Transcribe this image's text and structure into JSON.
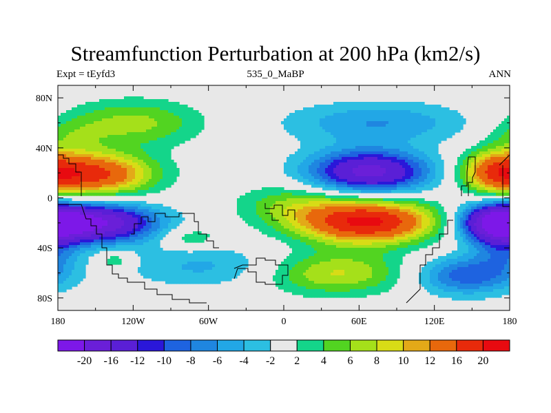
{
  "chart_data": {
    "type": "heatmap",
    "title": "Streamfunction Perturbation at 200 hPa (km2/s)",
    "left_string": "Expt = tEyfd3",
    "center_string": "535_0_MaBP",
    "right_string": "ANN",
    "xlim": [
      -180,
      180
    ],
    "ylim": [
      -90,
      90
    ],
    "x_ticks": [
      {
        "value": -180,
        "label": "180"
      },
      {
        "value": -120,
        "label": "120W"
      },
      {
        "value": -60,
        "label": "60W"
      },
      {
        "value": 0,
        "label": "0"
      },
      {
        "value": 60,
        "label": "60E"
      },
      {
        "value": 120,
        "label": "120E"
      },
      {
        "value": 180,
        "label": "180"
      }
    ],
    "y_ticks": [
      {
        "value": 80,
        "label": "80N"
      },
      {
        "value": 40,
        "label": "40N"
      },
      {
        "value": 0,
        "label": "0"
      },
      {
        "value": -40,
        "label": "40S"
      },
      {
        "value": -80,
        "label": "80S"
      }
    ],
    "levels": [
      -20,
      -16,
      -12,
      -10,
      -8,
      -6,
      -4,
      -2,
      2,
      4,
      6,
      8,
      10,
      12,
      16,
      20
    ],
    "level_labels": [
      "-20",
      "-16",
      "-12",
      "-10",
      "-8",
      "-6",
      "-4",
      "-2",
      "2",
      "4",
      "6",
      "8",
      "10",
      "12",
      "16",
      "20"
    ],
    "colors": [
      "#7d18e8",
      "#6a1fd8",
      "#5a1fd6",
      "#2a17d9",
      "#1e63e0",
      "#1f86e0",
      "#22a7e6",
      "#2cbfe2",
      "#e8e8e8",
      "#14d58a",
      "#52d421",
      "#a5e01a",
      "#d8dc16",
      "#e3a918",
      "#e8680c",
      "#e82a0b",
      "#e80a10"
    ],
    "anomalies": [
      {
        "lon": -150,
        "lat": 19,
        "value": 16.5,
        "rx": 32,
        "ry": 12
      },
      {
        "lon": -150,
        "lat": -20,
        "value": -20.0,
        "rx": 34,
        "ry": 11
      },
      {
        "lon": 68,
        "lat": 21,
        "value": -17.5,
        "rx": 34,
        "ry": 12
      },
      {
        "lon": 66,
        "lat": -19,
        "value": 21.0,
        "rx": 38,
        "ry": 12
      },
      {
        "lon": 170,
        "lat": 21,
        "value": 12.5,
        "rx": 20,
        "ry": 12
      },
      {
        "lon": 170,
        "lat": -20,
        "value": -18.5,
        "rx": 20,
        "ry": 11
      },
      {
        "lon": -120,
        "lat": 60,
        "value": 6.8,
        "rx": 38,
        "ry": 13
      },
      {
        "lon": 75,
        "lat": 60,
        "value": -6.0,
        "rx": 52,
        "ry": 12
      },
      {
        "lon": 40,
        "lat": -60,
        "value": 8.5,
        "rx": 40,
        "ry": 12
      },
      {
        "lon": 145,
        "lat": -62,
        "value": -9.5,
        "rx": 28,
        "ry": 11
      },
      {
        "lon": -60,
        "lat": -55,
        "value": -4.5,
        "rx": 48,
        "ry": 12
      },
      {
        "lon": -135,
        "lat": -50,
        "value": 4.5,
        "rx": 10,
        "ry": 6
      },
      {
        "lon": -75,
        "lat": -32,
        "value": 4.5,
        "rx": 16,
        "ry": 6
      },
      {
        "lon": 5,
        "lat": -5,
        "value": 5.0,
        "rx": 30,
        "ry": 12
      },
      {
        "lon": -170,
        "lat": 50,
        "value": 3.5,
        "rx": 20,
        "ry": 10
      },
      {
        "lon": 175,
        "lat": -45,
        "value": -5.0,
        "rx": 15,
        "ry": 12
      }
    ]
  }
}
